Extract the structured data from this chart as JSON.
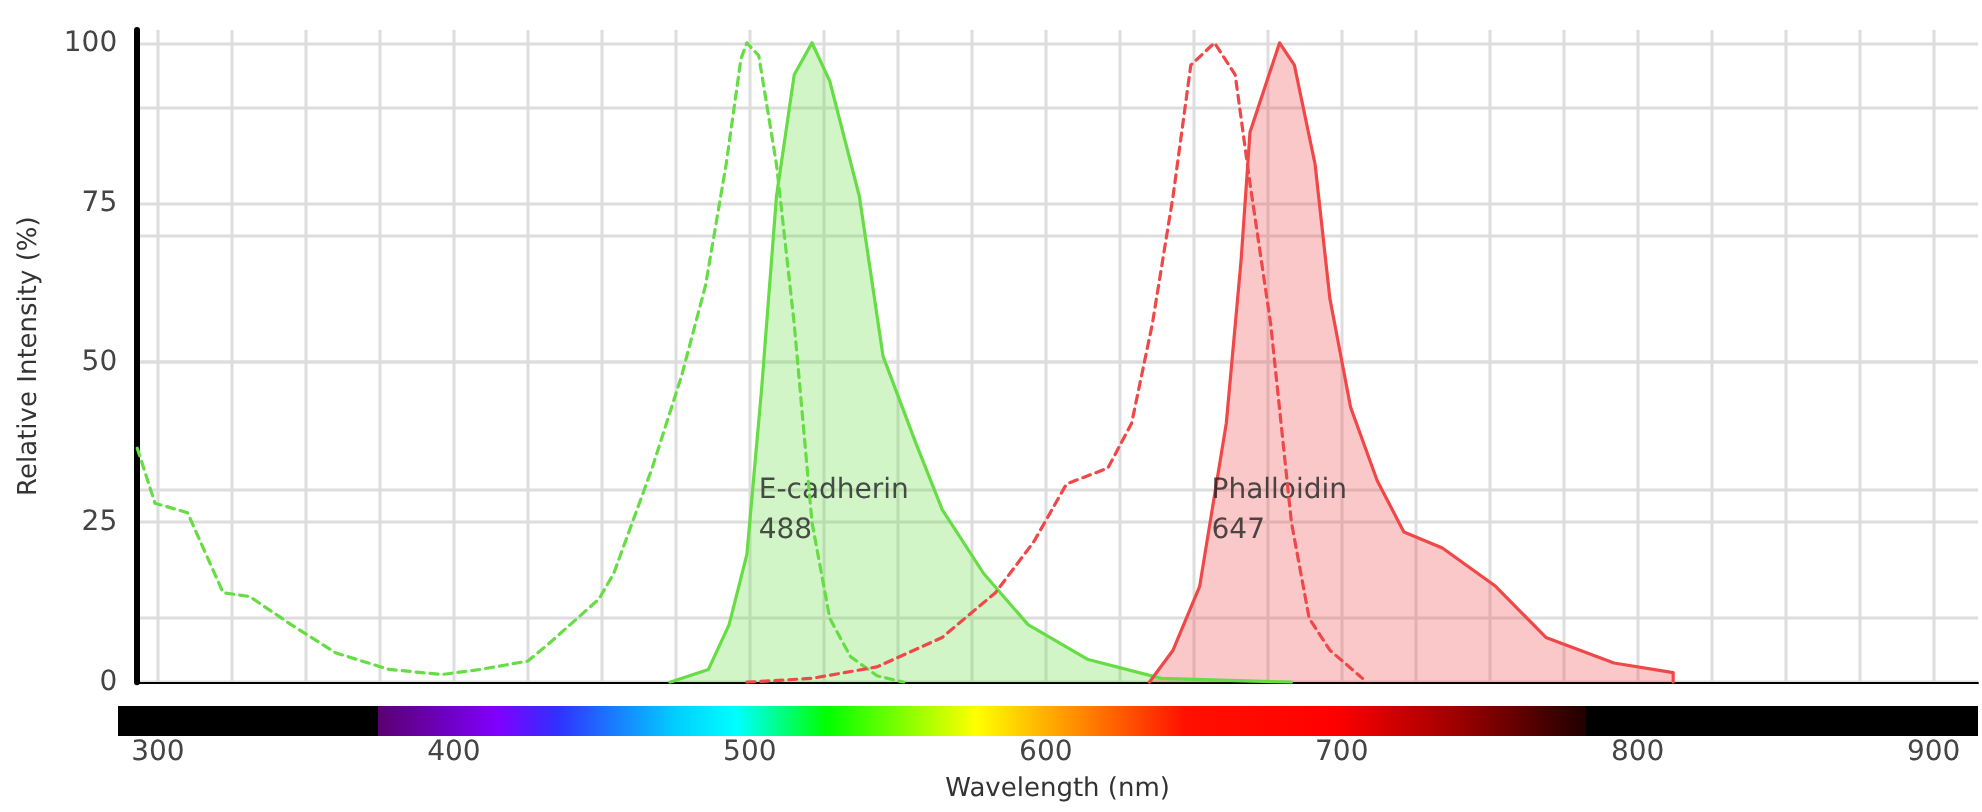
{
  "chart_data": {
    "type": "line",
    "xlabel": "Wavelength (nm)",
    "ylabel": "Relative Intensity (%)",
    "xlim": [
      293,
      915
    ],
    "xticks": [
      300,
      400,
      500,
      600,
      700,
      800,
      900
    ],
    "ylim": [
      0,
      102
    ],
    "yticks": [
      0,
      25,
      50,
      75,
      100
    ],
    "grid": true,
    "marker": "none",
    "series": [
      {
        "type": "line",
        "line_style": "dashed",
        "color": "#66dd44",
        "x": [
          293,
          299,
          310,
          322,
          331,
          345,
          360,
          378,
          396,
          409,
          425,
          432,
          449,
          454,
          467,
          477,
          485,
          492,
          497,
          499,
          503,
          509,
          515,
          521,
          527,
          534,
          543,
          552
        ],
        "values": [
          36.6,
          28,
          26.5,
          14,
          13.4,
          9,
          4.6,
          2,
          1.2,
          2,
          3.3,
          6,
          13,
          17,
          33.5,
          48,
          62,
          81,
          97.5,
          100,
          98,
          81,
          56,
          25,
          10,
          4,
          1,
          0
        ]
      },
      {
        "type": "area",
        "line_style": "solid",
        "color": "#66dd44",
        "x": [
          473,
          486,
          493,
          499,
          504,
          509,
          515,
          521,
          527,
          537,
          545,
          556,
          565,
          579,
          594,
          614,
          639,
          683
        ],
        "values": [
          0,
          2,
          9,
          20,
          46,
          76,
          95,
          100,
          94,
          76,
          51,
          37.5,
          27,
          17,
          9,
          3.6,
          0.6,
          0
        ]
      },
      {
        "type": "line",
        "line_style": "dashed",
        "color": "#f04848",
        "x": [
          499,
          521,
          543,
          565,
          583,
          596,
          607,
          621,
          629,
          636,
          643,
          649,
          657,
          664,
          669,
          676,
          683,
          689,
          696,
          707
        ],
        "values": [
          0,
          0.6,
          2.4,
          7,
          14,
          22,
          31,
          33.5,
          40.5,
          56,
          76,
          96.5,
          100,
          95,
          78,
          56,
          25,
          10,
          5,
          0.6
        ]
      },
      {
        "type": "area",
        "line_style": "solid",
        "color": "#f04848",
        "x": [
          635,
          643,
          652,
          661,
          666,
          669,
          679,
          684,
          691,
          696,
          703,
          712,
          721,
          734,
          752,
          769,
          792,
          812,
          812
        ],
        "values": [
          0,
          5,
          15,
          40.5,
          66,
          86,
          100,
          96.5,
          81,
          60,
          43,
          31.5,
          23.5,
          21,
          15,
          7,
          3,
          1.5,
          0
        ]
      }
    ],
    "annotations": [
      {
        "text": "E-cadherin\n488",
        "x": 503,
        "y": 27
      },
      {
        "text": "Phalloidin\n647",
        "x": 656,
        "y": 27
      }
    ]
  }
}
